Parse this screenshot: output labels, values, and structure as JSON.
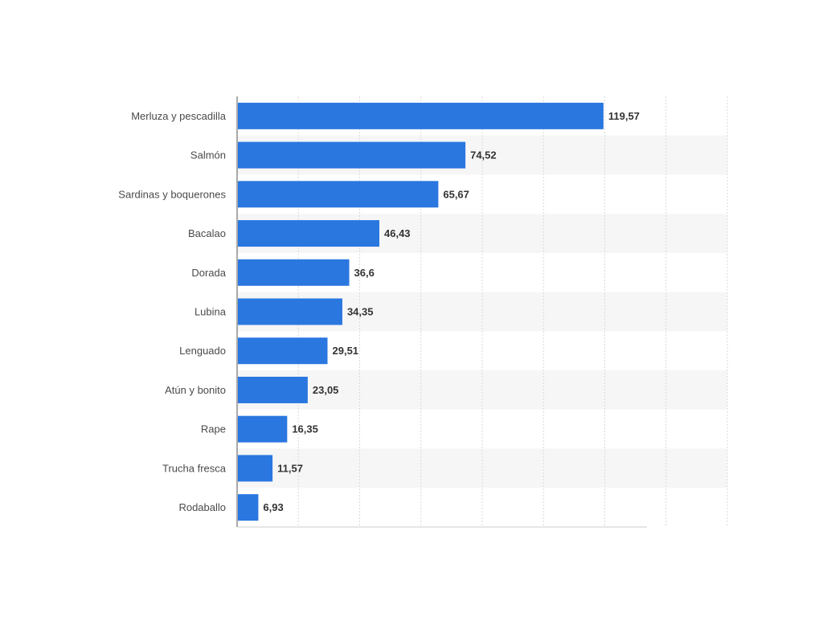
{
  "chart_data": {
    "type": "bar",
    "orientation": "horizontal",
    "categories": [
      "Merluza y pescadilla",
      "Salmón",
      "Sardinas y boquerones",
      "Bacalao",
      "Dorada",
      "Lubina",
      "Lenguado",
      "Atún y bonito",
      "Rape",
      "Trucha fresca",
      "Rodaballo"
    ],
    "values": [
      119.57,
      74.52,
      65.67,
      46.43,
      36.6,
      34.35,
      29.51,
      23.05,
      16.35,
      11.57,
      6.93
    ],
    "value_labels": [
      "119,57",
      "74,52",
      "65,67",
      "46,43",
      "36,6",
      "34,35",
      "29,51",
      "23,05",
      "16,35",
      "11,57",
      "6,93"
    ],
    "xlim": [
      0,
      160
    ],
    "grid": true,
    "title": "",
    "xlabel": "",
    "ylabel": "",
    "bar_color": "#2a77e0",
    "stripe_color": "#f6f6f6",
    "grid_color": "#d9d9d9"
  }
}
